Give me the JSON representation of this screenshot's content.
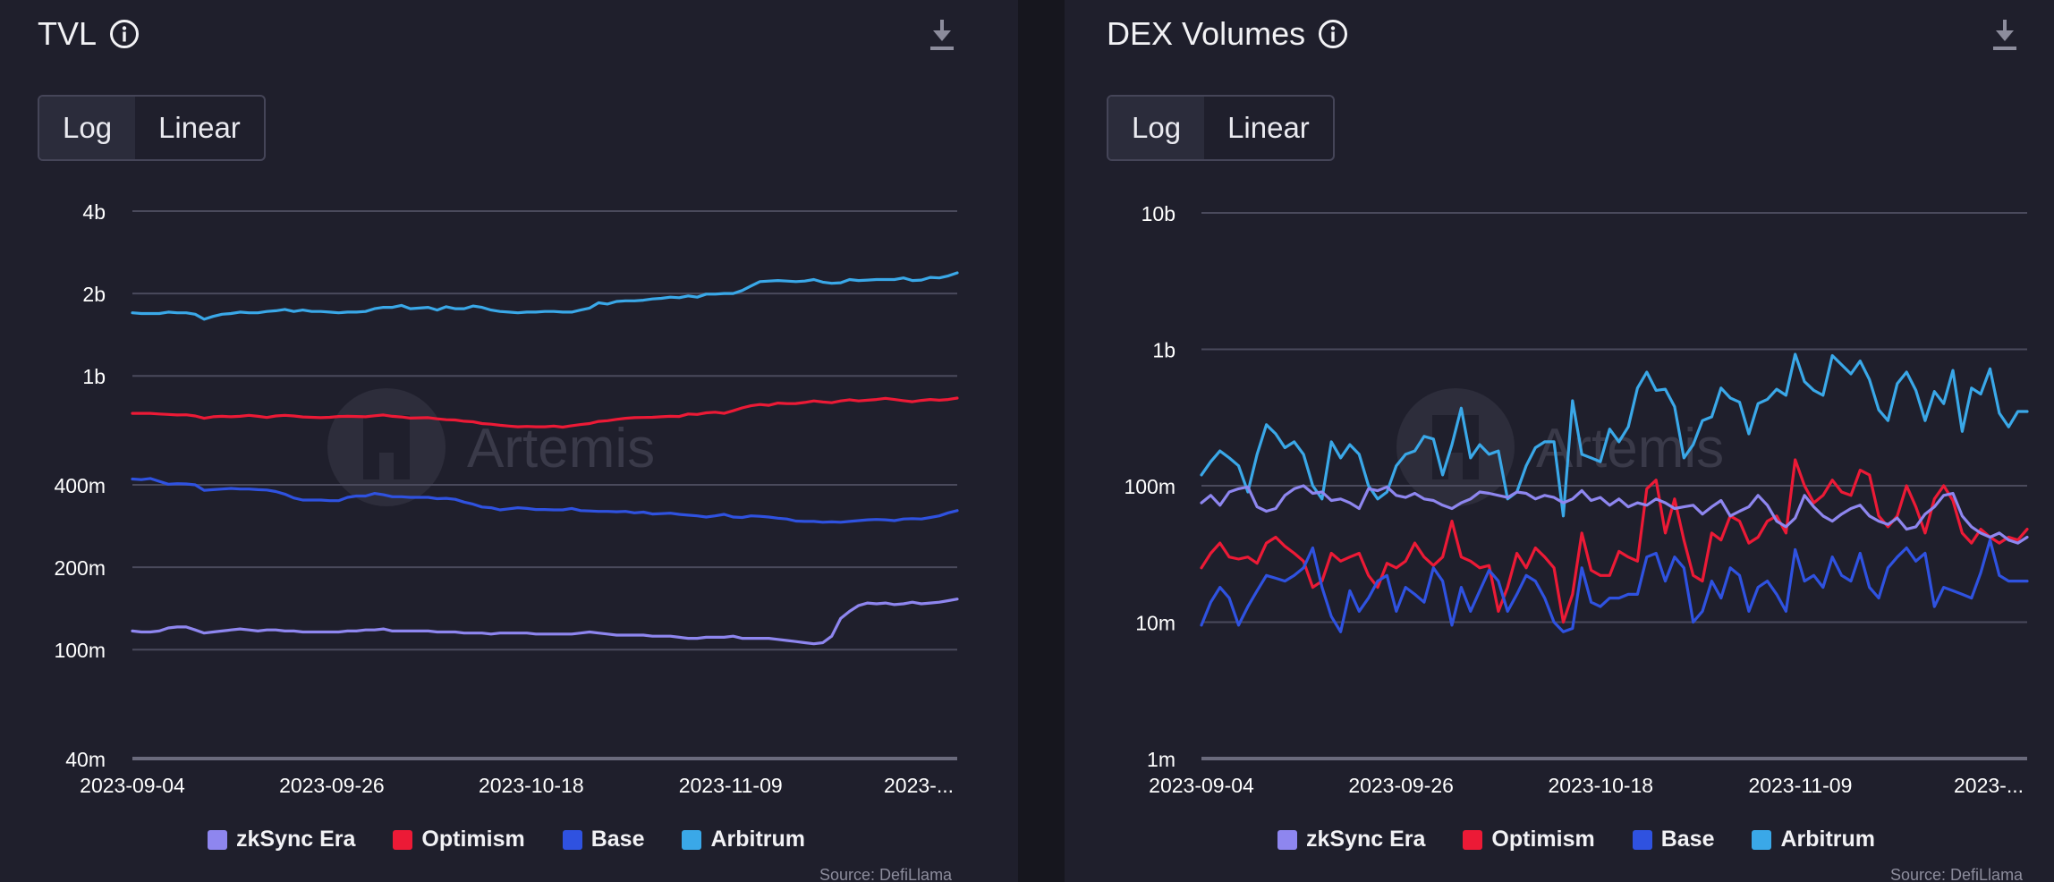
{
  "colors": {
    "zksync": "#8e86ef",
    "optimism": "#ec1a36",
    "base": "#2f52e0",
    "arbitrum": "#3aa8e8",
    "grid": "#4a4a5c",
    "tick": "#ffffff"
  },
  "watermark": "Artemis",
  "panels": [
    {
      "title": "TVL",
      "toggle": {
        "options": [
          "Log",
          "Linear"
        ],
        "selected": "Log"
      },
      "legend": [
        "zkSync Era",
        "Optimism",
        "Base",
        "Arbitrum"
      ],
      "source": "Source: DefiLlama"
    },
    {
      "title": "DEX Volumes",
      "toggle": {
        "options": [
          "Log",
          "Linear"
        ],
        "selected": "Log"
      },
      "legend": [
        "zkSync Era",
        "Optimism",
        "Base",
        "Arbitrum"
      ],
      "source": "Source: DefiLlama"
    }
  ],
  "chart_data": [
    {
      "type": "line",
      "title": "TVL",
      "yscale": "log",
      "ylim": [
        40000000,
        4000000000
      ],
      "yticks": [
        40000000,
        100000000,
        200000000,
        400000000,
        1000000000,
        2000000000,
        4000000000
      ],
      "ytick_labels": [
        "40m",
        "100m",
        "200m",
        "400m",
        "1b",
        "2b",
        "4b"
      ],
      "x_start": "2023-09-04",
      "x_end": "2023-12-04",
      "xtick_labels": [
        "2023-09-04",
        "2023-09-26",
        "2023-10-18",
        "2023-11-09",
        "2023-..."
      ],
      "xtick_days": [
        0,
        22,
        44,
        66,
        88
      ],
      "legend_position": "bottom",
      "grid": true,
      "series": [
        {
          "name": "Arbitrum",
          "color_key": "arbitrum",
          "values": [
            1700000000,
            1690000000,
            1690000000,
            1690000000,
            1710000000,
            1700000000,
            1700000000,
            1680000000,
            1610000000,
            1650000000,
            1680000000,
            1690000000,
            1710000000,
            1700000000,
            1700000000,
            1720000000,
            1730000000,
            1750000000,
            1720000000,
            1740000000,
            1720000000,
            1720000000,
            1710000000,
            1700000000,
            1710000000,
            1710000000,
            1720000000,
            1760000000,
            1780000000,
            1780000000,
            1810000000,
            1760000000,
            1770000000,
            1780000000,
            1740000000,
            1790000000,
            1760000000,
            1760000000,
            1800000000,
            1780000000,
            1740000000,
            1720000000,
            1710000000,
            1700000000,
            1710000000,
            1710000000,
            1720000000,
            1720000000,
            1710000000,
            1710000000,
            1740000000,
            1770000000,
            1850000000,
            1830000000,
            1870000000,
            1880000000,
            1880000000,
            1890000000,
            1910000000,
            1920000000,
            1940000000,
            1930000000,
            1960000000,
            1940000000,
            1990000000,
            1990000000,
            2000000000,
            2000000000,
            2050000000,
            2130000000,
            2210000000,
            2220000000,
            2230000000,
            2220000000,
            2210000000,
            2220000000,
            2250000000,
            2200000000,
            2180000000,
            2190000000,
            2250000000,
            2230000000,
            2240000000,
            2250000000,
            2250000000,
            2250000000,
            2280000000,
            2230000000,
            2240000000,
            2290000000,
            2280000000,
            2320000000,
            2380000000
          ]
        },
        {
          "name": "Optimism",
          "color_key": "optimism",
          "values": [
            730000000,
            730000000,
            730000000,
            726000000,
            723000000,
            720000000,
            721000000,
            714000000,
            700000000,
            709000000,
            712000000,
            709000000,
            712000000,
            718000000,
            712000000,
            705000000,
            714000000,
            718000000,
            714000000,
            708000000,
            706000000,
            704000000,
            706000000,
            711000000,
            712000000,
            711000000,
            709000000,
            715000000,
            720000000,
            712000000,
            708000000,
            701000000,
            703000000,
            704000000,
            697000000,
            692000000,
            690000000,
            683000000,
            680000000,
            670000000,
            666000000,
            660000000,
            656000000,
            652000000,
            654000000,
            652000000,
            652000000,
            656000000,
            650000000,
            658000000,
            664000000,
            670000000,
            682000000,
            686000000,
            694000000,
            700000000,
            704000000,
            705000000,
            706000000,
            709000000,
            712000000,
            711000000,
            726000000,
            723000000,
            733000000,
            737000000,
            730000000,
            746000000,
            764000000,
            778000000,
            786000000,
            781000000,
            796000000,
            792000000,
            793000000,
            800000000,
            810000000,
            803000000,
            798000000,
            810000000,
            818000000,
            810000000,
            815000000,
            820000000,
            828000000,
            820000000,
            812000000,
            805000000,
            814000000,
            820000000,
            815000000,
            820000000,
            830000000
          ]
        },
        {
          "name": "Base",
          "color_key": "base",
          "values": [
            420000000,
            418000000,
            422000000,
            412000000,
            402000000,
            404000000,
            403000000,
            400000000,
            382000000,
            384000000,
            386000000,
            388000000,
            386000000,
            386000000,
            384000000,
            383000000,
            378000000,
            370000000,
            358000000,
            352000000,
            352000000,
            352000000,
            350000000,
            350000000,
            360000000,
            364000000,
            364000000,
            372000000,
            368000000,
            362000000,
            362000000,
            360000000,
            360000000,
            360000000,
            356000000,
            357000000,
            354000000,
            346000000,
            340000000,
            332000000,
            330000000,
            324000000,
            327000000,
            330000000,
            328000000,
            325000000,
            325000000,
            324000000,
            324000000,
            328000000,
            322000000,
            321000000,
            320000000,
            320000000,
            319000000,
            320000000,
            316000000,
            318000000,
            313000000,
            314000000,
            315000000,
            312000000,
            310000000,
            308000000,
            305000000,
            308000000,
            312000000,
            305000000,
            304000000,
            308000000,
            307000000,
            305000000,
            302000000,
            300000000,
            295000000,
            294000000,
            294000000,
            292000000,
            293000000,
            292000000,
            294000000,
            296000000,
            298000000,
            299000000,
            298000000,
            296000000,
            300000000,
            301000000,
            300000000,
            304000000,
            308000000,
            316000000,
            322000000
          ]
        },
        {
          "name": "zkSync Era",
          "color_key": "zksync",
          "values": [
            117000000,
            116000000,
            116000000,
            117000000,
            120000000,
            121000000,
            121000000,
            118000000,
            115000000,
            116000000,
            117000000,
            118000000,
            119000000,
            118000000,
            117000000,
            118000000,
            118000000,
            117000000,
            117000000,
            116000000,
            116000000,
            116000000,
            116000000,
            116000000,
            117000000,
            117000000,
            118000000,
            118000000,
            119000000,
            117000000,
            117000000,
            117000000,
            117000000,
            117000000,
            116000000,
            116000000,
            116000000,
            115000000,
            115000000,
            115000000,
            114000000,
            115000000,
            115000000,
            115000000,
            115000000,
            114000000,
            114000000,
            114000000,
            114000000,
            114000000,
            115000000,
            116000000,
            115000000,
            114000000,
            113000000,
            113000000,
            113000000,
            113000000,
            112000000,
            112000000,
            112000000,
            111000000,
            110000000,
            110000000,
            111000000,
            111000000,
            111000000,
            112000000,
            110000000,
            110000000,
            110000000,
            110000000,
            109000000,
            108000000,
            107000000,
            106000000,
            105000000,
            106000000,
            112000000,
            130000000,
            138000000,
            145000000,
            148000000,
            147000000,
            148000000,
            146000000,
            147000000,
            149000000,
            147000000,
            148000000,
            149000000,
            151000000,
            153000000
          ]
        }
      ]
    },
    {
      "type": "line",
      "title": "DEX Volumes",
      "yscale": "log",
      "ylim": [
        1000000,
        10000000000
      ],
      "yticks": [
        1000000,
        10000000,
        100000000,
        1000000000,
        10000000000
      ],
      "ytick_labels": [
        "1m",
        "10m",
        "100m",
        "1b",
        "10b"
      ],
      "x_start": "2023-09-04",
      "x_end": "2023-12-04",
      "xtick_labels": [
        "2023-09-04",
        "2023-09-26",
        "2023-10-18",
        "2023-11-09",
        "2023-..."
      ],
      "xtick_days": [
        0,
        22,
        44,
        66,
        88
      ],
      "legend_position": "bottom",
      "grid": true,
      "series": [
        {
          "name": "Arbitrum",
          "color_key": "arbitrum",
          "values": [
            120000000,
            150000000,
            180000000,
            160000000,
            140000000,
            90000000,
            170000000,
            280000000,
            240000000,
            190000000,
            210000000,
            170000000,
            100000000,
            80000000,
            210000000,
            160000000,
            200000000,
            170000000,
            100000000,
            80000000,
            90000000,
            140000000,
            170000000,
            180000000,
            230000000,
            220000000,
            120000000,
            200000000,
            370000000,
            160000000,
            200000000,
            170000000,
            180000000,
            80000000,
            90000000,
            140000000,
            190000000,
            210000000,
            210000000,
            60000000,
            420000000,
            170000000,
            160000000,
            150000000,
            260000000,
            210000000,
            270000000,
            520000000,
            680000000,
            500000000,
            510000000,
            380000000,
            160000000,
            200000000,
            300000000,
            320000000,
            520000000,
            440000000,
            410000000,
            240000000,
            400000000,
            430000000,
            510000000,
            460000000,
            920000000,
            580000000,
            500000000,
            460000000,
            900000000,
            770000000,
            660000000,
            820000000,
            600000000,
            360000000,
            300000000,
            560000000,
            680000000,
            500000000,
            300000000,
            490000000,
            400000000,
            700000000,
            250000000,
            520000000,
            470000000,
            720000000,
            340000000,
            270000000,
            350000000,
            350000000
          ]
        },
        {
          "name": "Optimism",
          "color_key": "optimism",
          "values": [
            25000000,
            32000000,
            38000000,
            30000000,
            29000000,
            30000000,
            27000000,
            38000000,
            42000000,
            36000000,
            32000000,
            28000000,
            18000000,
            20000000,
            32000000,
            28000000,
            30000000,
            32000000,
            22000000,
            18000000,
            27000000,
            25000000,
            28000000,
            38000000,
            30000000,
            26000000,
            30000000,
            55000000,
            30000000,
            28000000,
            25000000,
            26000000,
            12000000,
            18000000,
            32000000,
            25000000,
            35000000,
            30000000,
            25000000,
            10000000,
            16000000,
            45000000,
            24000000,
            22000000,
            22000000,
            33000000,
            30000000,
            28000000,
            95000000,
            110000000,
            45000000,
            80000000,
            40000000,
            22000000,
            20000000,
            45000000,
            40000000,
            60000000,
            55000000,
            38000000,
            42000000,
            55000000,
            60000000,
            45000000,
            155000000,
            100000000,
            75000000,
            85000000,
            110000000,
            90000000,
            85000000,
            130000000,
            120000000,
            60000000,
            50000000,
            60000000,
            100000000,
            70000000,
            45000000,
            80000000,
            100000000,
            78000000,
            45000000,
            38000000,
            48000000,
            42000000,
            38000000,
            42000000,
            40000000,
            48000000
          ]
        },
        {
          "name": "Base",
          "color_key": "base",
          "values": [
            9500000,
            14000000,
            18000000,
            15000000,
            9500000,
            13000000,
            17000000,
            22000000,
            21000000,
            20000000,
            22000000,
            25000000,
            35000000,
            18000000,
            11000000,
            8500000,
            17000000,
            12000000,
            15000000,
            20000000,
            22000000,
            12000000,
            18000000,
            16000000,
            14000000,
            25000000,
            20000000,
            9500000,
            18000000,
            12000000,
            17000000,
            24000000,
            20000000,
            12000000,
            16000000,
            22000000,
            20000000,
            15000000,
            10000000,
            8500000,
            9000000,
            25000000,
            14000000,
            13000000,
            15000000,
            15000000,
            16000000,
            16000000,
            30000000,
            32000000,
            20000000,
            30000000,
            25000000,
            10000000,
            12000000,
            20000000,
            15000000,
            25000000,
            22000000,
            12000000,
            18000000,
            20000000,
            16000000,
            12000000,
            34000000,
            20000000,
            22000000,
            18000000,
            30000000,
            22000000,
            20000000,
            32000000,
            18000000,
            15000000,
            25000000,
            30000000,
            35000000,
            28000000,
            32000000,
            13000000,
            18000000,
            17000000,
            16000000,
            15000000,
            23000000,
            40000000,
            22000000,
            20000000,
            20000000,
            20000000
          ]
        },
        {
          "name": "zkSync Era",
          "color_key": "zksync",
          "values": [
            75000000,
            85000000,
            72000000,
            90000000,
            95000000,
            98000000,
            70000000,
            65000000,
            68000000,
            85000000,
            95000000,
            100000000,
            88000000,
            90000000,
            78000000,
            80000000,
            75000000,
            68000000,
            95000000,
            92000000,
            98000000,
            85000000,
            82000000,
            88000000,
            80000000,
            78000000,
            72000000,
            68000000,
            75000000,
            80000000,
            90000000,
            88000000,
            85000000,
            82000000,
            90000000,
            88000000,
            80000000,
            85000000,
            82000000,
            75000000,
            80000000,
            92000000,
            78000000,
            82000000,
            72000000,
            80000000,
            70000000,
            75000000,
            72000000,
            80000000,
            75000000,
            68000000,
            70000000,
            72000000,
            62000000,
            70000000,
            78000000,
            60000000,
            65000000,
            70000000,
            85000000,
            72000000,
            55000000,
            50000000,
            58000000,
            85000000,
            70000000,
            60000000,
            55000000,
            62000000,
            68000000,
            72000000,
            60000000,
            55000000,
            52000000,
            58000000,
            48000000,
            50000000,
            62000000,
            70000000,
            85000000,
            88000000,
            60000000,
            50000000,
            45000000,
            42000000,
            45000000,
            40000000,
            38000000,
            42000000
          ]
        }
      ]
    }
  ]
}
